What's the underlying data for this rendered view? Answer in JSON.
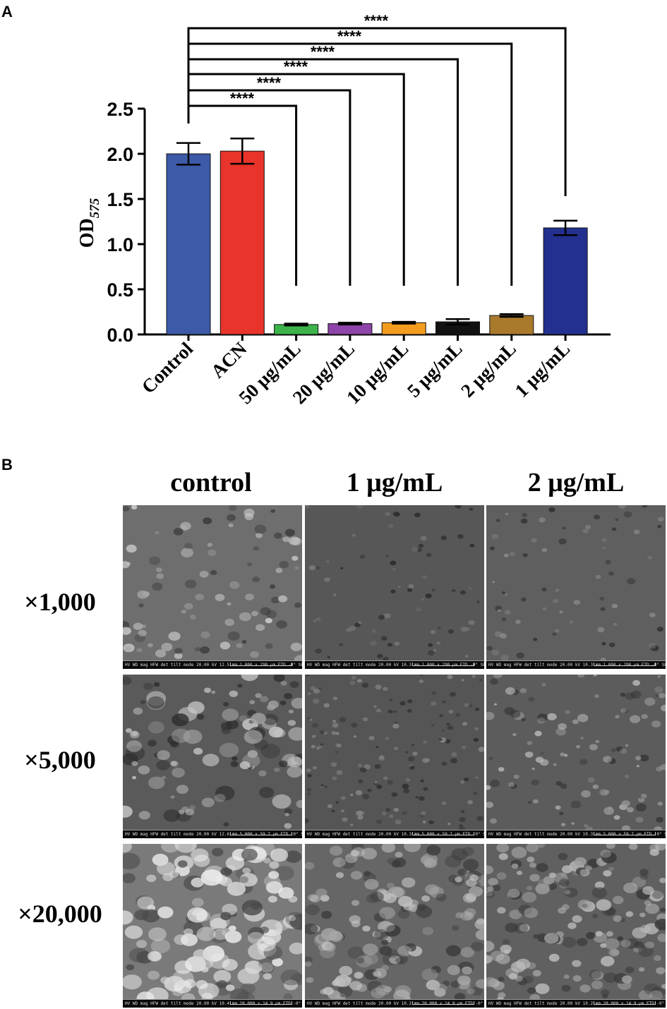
{
  "panel_a_label": "A",
  "panel_b_label": "B",
  "chart_data": {
    "type": "bar",
    "ylabel_main": "OD",
    "ylabel_sub": "575",
    "ylim": [
      0,
      2.5
    ],
    "yticks": [
      "0.0",
      "0.5",
      "1.0",
      "1.5",
      "2.0",
      "2.5"
    ],
    "categories": [
      "Control",
      "ACN",
      "50 μg/mL",
      "20 μg/mL",
      "10 μg/mL",
      "5 μg/mL",
      "2 μg/mL",
      "1 μg/mL"
    ],
    "values": [
      2.0,
      2.03,
      0.11,
      0.12,
      0.13,
      0.14,
      0.21,
      1.18
    ],
    "errors": [
      0.12,
      0.14,
      0.01,
      0.01,
      0.01,
      0.03,
      0.015,
      0.08
    ],
    "colors": [
      "#3c5aa8",
      "#e8342a",
      "#3cb44b",
      "#8e44a8",
      "#f39c1e",
      "#111111",
      "#a97a2c",
      "#23308f"
    ],
    "significance": [
      {
        "from": "Control",
        "to": "50 μg/mL",
        "label": "****"
      },
      {
        "from": "Control",
        "to": "20 μg/mL",
        "label": "****"
      },
      {
        "from": "Control",
        "to": "10 μg/mL",
        "label": "****"
      },
      {
        "from": "Control",
        "to": "5 μg/mL",
        "label": "****"
      },
      {
        "from": "Control",
        "to": "2 μg/mL",
        "label": "****"
      },
      {
        "from": "Control",
        "to": "1 μg/mL",
        "label": "****"
      }
    ],
    "grid": false
  },
  "sem": {
    "columns": [
      "control",
      "1 μg/mL",
      "2 μg/mL"
    ],
    "rows": [
      "×1,000",
      "×5,000",
      "×20,000"
    ],
    "info_bars": [
      [
        "HV WD mag HFW det tilt mode 20.00 kV 12.5 mm 1 000 x 298 μm ETD -0° SE",
        "HV WD mag HFW det tilt mode 20.00 kV 10.3 mm 1 000 x 298 μm ETD -0° SE",
        "HV WD mag HFW det tilt mode 20.00 kV 10.3 mm 1 000 x 298 μm ETD -0° SE"
      ],
      [
        "HV WD mag HFW det tilt mode 20.00 kV 12.6 mm 5 000 x 59.7 μm ETD -0° SE",
        "HV WD mag HFW det tilt mode 20.00 kV 10.3 mm 5 000 x 59.7 μm ETD -0° SE",
        "HV WD mag HFW det tilt mode 20.00 kV 10.3 mm 5 000 x 59.7 μm ETD -0° SE"
      ],
      [
        "HV WD mag HFW det tilt mode 20.00 kV 10.4 mm 20 000 x 14.9 μm ETD -0° SE",
        "HV WD mag HFW det tilt mode 20.00 kV 10.2 mm 20 000 x 14.9 μm ETD -0° SE",
        "HV WD mag HFW det tilt mode 20.00 kV 10.2 mm 20 000 x 14.9 μm ETD -0° SE"
      ]
    ],
    "scale_labels": [
      "100 μm",
      "20 μm",
      "5 μm"
    ]
  }
}
